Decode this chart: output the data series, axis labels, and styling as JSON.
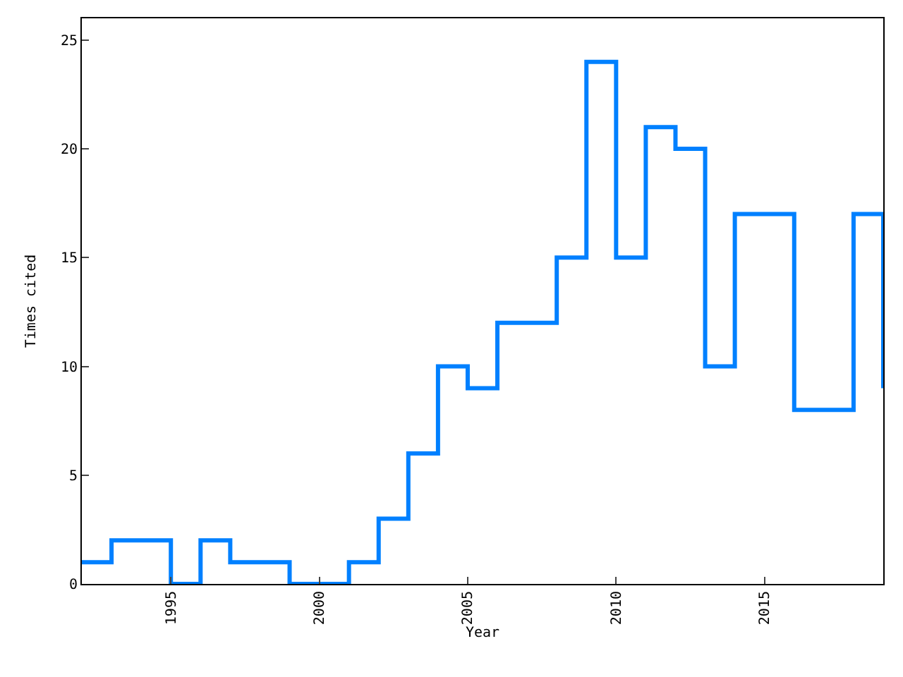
{
  "chart_data": {
    "type": "step",
    "xlabel": "Year",
    "ylabel": "Times cited",
    "x": [
      1992,
      1993,
      1994,
      1995,
      1996,
      1997,
      1998,
      1999,
      2000,
      2001,
      2002,
      2003,
      2004,
      2005,
      2006,
      2007,
      2008,
      2009,
      2010,
      2011,
      2012,
      2013,
      2014,
      2015,
      2016,
      2017,
      2018,
      2019
    ],
    "series": [
      {
        "color": "#0080ff",
        "values": [
          1,
          2,
          2,
          0,
          2,
          1,
          1,
          0,
          0,
          1,
          3,
          6,
          10,
          9,
          12,
          12,
          15,
          24,
          15,
          21,
          20,
          10,
          17,
          17,
          8,
          8,
          17,
          9
        ]
      }
    ],
    "xlim": [
      1992,
      2019
    ],
    "xticks": [
      1995,
      2000,
      2005,
      2010,
      2015
    ],
    "ylim": [
      0,
      26
    ],
    "yticks": [
      0,
      5,
      10,
      15,
      20,
      25
    ],
    "marker": "none",
    "line_style": "solid"
  }
}
